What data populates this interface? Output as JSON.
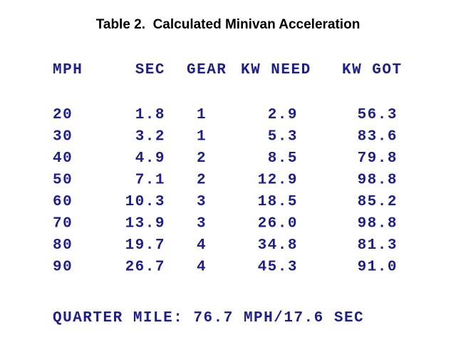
{
  "title": "Table 2.  Calculated Minivan Acceleration",
  "table": {
    "headers": [
      "MPH",
      "SEC",
      "GEAR",
      "KW NEED",
      "KW GOT"
    ],
    "rows": [
      [
        "20",
        "1.8",
        "1",
        "2.9",
        "56.3"
      ],
      [
        "30",
        "3.2",
        "1",
        "5.3",
        "83.6"
      ],
      [
        "40",
        "4.9",
        "2",
        "8.5",
        "79.8"
      ],
      [
        "50",
        "7.1",
        "2",
        "12.9",
        "98.8"
      ],
      [
        "60",
        "10.3",
        "3",
        "18.5",
        "85.2"
      ],
      [
        "70",
        "13.9",
        "3",
        "26.0",
        "98.8"
      ],
      [
        "80",
        "19.7",
        "4",
        "34.8",
        "81.3"
      ],
      [
        "90",
        "26.7",
        "4",
        "45.3",
        "91.0"
      ]
    ]
  },
  "footer": "QUARTER MILE: 76.7 MPH/17.6 SEC"
}
